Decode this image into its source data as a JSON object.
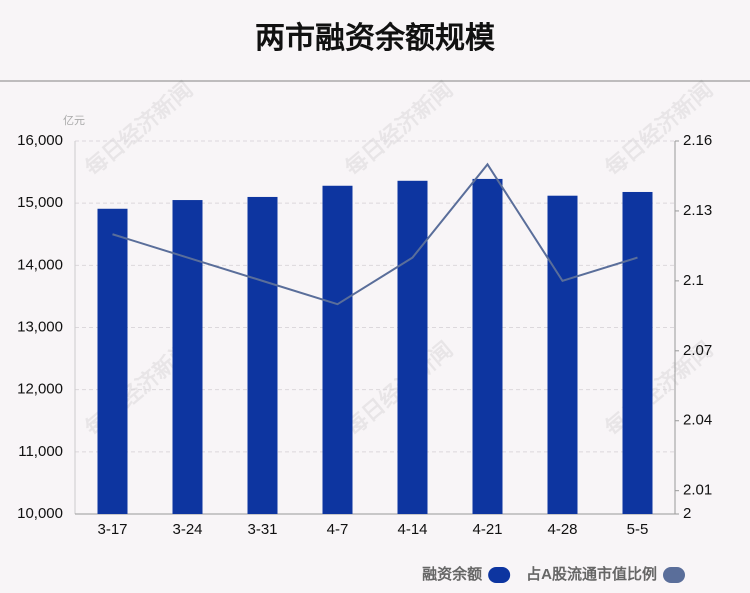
{
  "chart_data": {
    "type": "bar",
    "title": "两市融资余额规模",
    "y_unit": "亿元",
    "watermark": "每日经济新闻",
    "categories": [
      "3-17",
      "3-24",
      "3-31",
      "4-7",
      "4-14",
      "4-21",
      "4-28",
      "5-5"
    ],
    "series": [
      {
        "name": "融资余额",
        "type": "bar",
        "color": "#0d35a0",
        "values": [
          14910,
          15050,
          15100,
          15280,
          15360,
          15390,
          15120,
          15180
        ]
      },
      {
        "name": "占A股流通市值比例",
        "type": "line",
        "axis": "y2",
        "color": "#5a6e9a",
        "values": [
          2.12,
          2.11,
          2.1,
          2.09,
          2.11,
          2.15,
          2.1,
          2.11
        ]
      }
    ],
    "ylim": [
      10000,
      16000
    ],
    "yticks": [
      {
        "value": 10000,
        "label": "10,000"
      },
      {
        "value": 11000,
        "label": "11,000"
      },
      {
        "value": 12000,
        "label": "12,000"
      },
      {
        "value": 13000,
        "label": "13,000"
      },
      {
        "value": 14000,
        "label": "14,000"
      },
      {
        "value": 15000,
        "label": "15,000"
      },
      {
        "value": 16000,
        "label": "16,000"
      }
    ],
    "y2lim": [
      2,
      2.16
    ],
    "y2ticks": [
      2,
      2.01,
      2.04,
      2.07,
      2.1,
      2.13,
      2.16
    ],
    "grid": true,
    "legend": "bottom-right"
  }
}
